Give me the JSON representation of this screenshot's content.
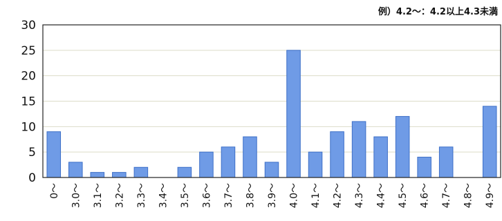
{
  "chart_data": {
    "type": "bar",
    "title": "",
    "xlabel": "",
    "ylabel": "",
    "annotation": "例）4.2～：4.2以上4.3未満",
    "categories": [
      "0～",
      "3.0～",
      "3.1～",
      "3.2～",
      "3.3～",
      "3.4～",
      "3.5～",
      "3.6～",
      "3.7～",
      "3.8～",
      "3.9～",
      "4.0～",
      "4.1～",
      "4.2～",
      "4.3～",
      "4.4～",
      "4.5～",
      "4.6～",
      "4.7～",
      "4.8～",
      "4.9～"
    ],
    "values": [
      9,
      3,
      1,
      1,
      2,
      0,
      2,
      5,
      6,
      8,
      3,
      25,
      5,
      9,
      11,
      8,
      12,
      4,
      6,
      0,
      14
    ],
    "ylim": [
      0,
      30
    ],
    "yticks": [
      0,
      5,
      10,
      15,
      20,
      25,
      30
    ],
    "grid": true,
    "bar_color": "#6f9be6",
    "bar_edge_color": "#3d6fc7"
  }
}
